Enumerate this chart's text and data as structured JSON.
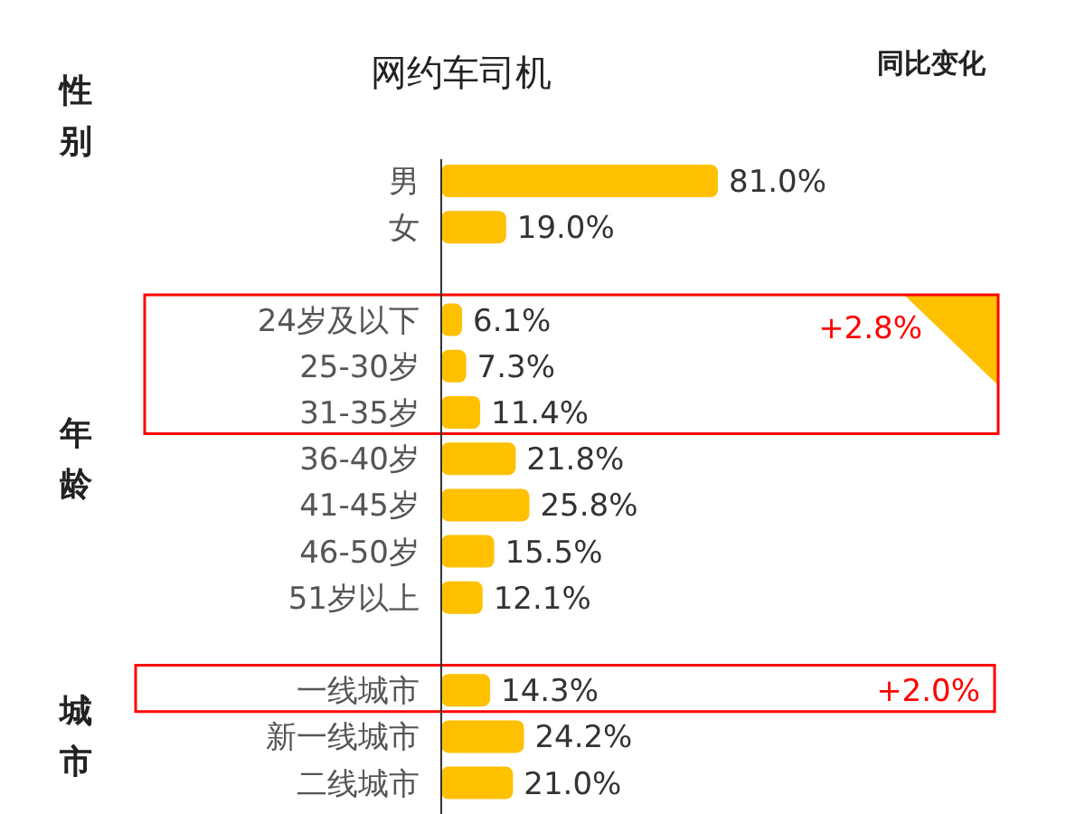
{
  "chart_data": {
    "type": "bar",
    "orientation": "horizontal",
    "title": "网约车司机",
    "categories": [
      "男",
      "女",
      null,
      "24岁及以下",
      "25-30岁",
      "31-35岁",
      "36-40岁",
      "41-45岁",
      "46-50岁",
      "51岁以上",
      null,
      "一线城市",
      "新一线城市",
      "二线城市"
    ],
    "values": [
      81.0,
      19.0,
      null,
      6.1,
      7.3,
      11.4,
      21.8,
      25.8,
      15.5,
      12.1,
      null,
      14.3,
      24.2,
      21.0
    ],
    "value_labels": [
      "81.0%",
      "19.0%",
      null,
      "6.1%",
      "7.3%",
      "11.4%",
      "21.8%",
      "25.8%",
      "15.5%",
      "12.1%",
      null,
      "14.3%",
      "24.2%",
      "21.0%"
    ],
    "color": "#ffc000",
    "annotations": [
      "同比变化",
      "性别",
      "年龄",
      "城市",
      "+2.8%",
      "+2.0%"
    ]
  }
}
